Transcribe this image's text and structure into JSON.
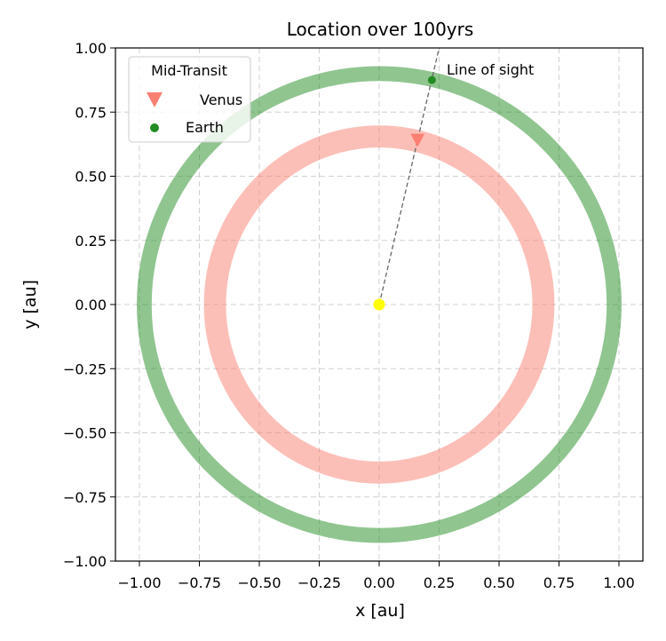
{
  "chart_data": {
    "type": "scatter",
    "title": "Location over 100yrs",
    "xlabel": "x [au]",
    "ylabel": "y [au]",
    "xlim": [
      -1.1,
      1.1
    ],
    "ylim": [
      -1.0,
      1.0
    ],
    "xticks": [
      -1.0,
      -0.75,
      -0.5,
      -0.25,
      0.0,
      0.25,
      0.5,
      0.75,
      1.0
    ],
    "xtick_labels": [
      "−1.00",
      "−0.75",
      "−0.50",
      "−0.25",
      "0.00",
      "0.25",
      "0.50",
      "0.75",
      "1.00"
    ],
    "yticks": [
      1.0,
      0.75,
      0.5,
      0.25,
      0.0,
      -0.25,
      -0.5,
      -0.75,
      -1.0
    ],
    "ytick_labels": [
      "1.00",
      "0.75",
      "0.50",
      "0.25",
      "0.00",
      "−0.25",
      "−0.50",
      "−0.75",
      "−1.00"
    ],
    "grid": true,
    "legend": {
      "title": "Mid-Transit",
      "placement": "top-left",
      "entries": [
        "Venus",
        "Earth"
      ]
    },
    "series": [
      {
        "name": "Venus",
        "kind": "orbit-trace",
        "color": "#fa8072",
        "center": [
          0.0,
          0.0
        ],
        "radius_x_range": [
          0.65,
          0.72
        ],
        "radius_y_range": [
          0.65,
          0.66
        ]
      },
      {
        "name": "Earth",
        "kind": "orbit-trace",
        "color": "#228b22",
        "center": [
          0.0,
          0.0
        ],
        "radius_x_range": [
          0.96,
          1.0
        ],
        "radius_y_range": [
          0.88,
          0.92
        ]
      }
    ],
    "points": [
      {
        "name": "Venus",
        "marker": "triangle-down",
        "color": "#fa8072",
        "x": 0.16,
        "y": 0.645
      },
      {
        "name": "Earth",
        "marker": "circle",
        "color": "#228b22",
        "x": 0.22,
        "y": 0.875
      },
      {
        "name": "Sun",
        "marker": "circle",
        "color": "#ffff00",
        "x": 0.0,
        "y": 0.0
      }
    ],
    "line_of_sight": {
      "label": "Line of sight",
      "from": [
        0.0,
        0.0
      ],
      "to": [
        0.25,
        1.0
      ],
      "style": "dashed",
      "color": "#666666"
    }
  }
}
